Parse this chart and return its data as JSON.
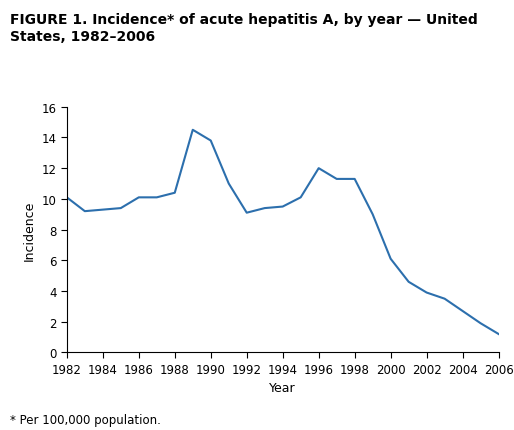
{
  "title_line1": "FIGURE 1. Incidence* of acute hepatitis A, by year — United",
  "title_line2": "States, 1982–2006",
  "xlabel": "Year",
  "ylabel": "Incidence",
  "footnote": "* Per 100,000 population.",
  "line_color": "#2c6fad",
  "line_width": 1.5,
  "background_color": "#ffffff",
  "xlim": [
    1982,
    2006
  ],
  "ylim": [
    0,
    16
  ],
  "yticks": [
    0,
    2,
    4,
    6,
    8,
    10,
    12,
    14,
    16
  ],
  "xticks": [
    1982,
    1984,
    1986,
    1988,
    1990,
    1992,
    1994,
    1996,
    1998,
    2000,
    2002,
    2004,
    2006
  ],
  "years": [
    1982,
    1983,
    1984,
    1985,
    1986,
    1987,
    1988,
    1989,
    1990,
    1991,
    1992,
    1993,
    1994,
    1995,
    1996,
    1997,
    1998,
    1999,
    2000,
    2001,
    2002,
    2003,
    2004,
    2005,
    2006
  ],
  "values": [
    10.1,
    9.2,
    9.3,
    9.4,
    10.1,
    10.1,
    10.4,
    14.5,
    13.8,
    11.0,
    9.1,
    9.4,
    9.5,
    10.1,
    12.0,
    11.3,
    11.3,
    9.0,
    6.1,
    4.6,
    3.9,
    3.5,
    2.7,
    1.9,
    1.2
  ],
  "title_fontsize": 10,
  "axis_fontsize": 9,
  "tick_fontsize": 8.5,
  "footnote_fontsize": 8.5
}
